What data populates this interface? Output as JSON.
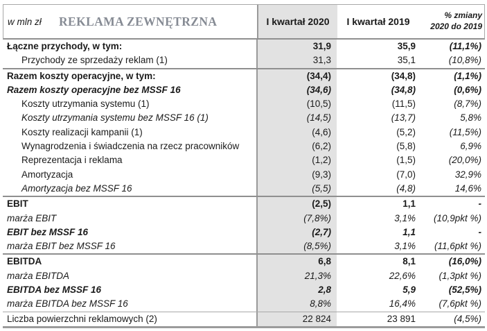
{
  "header": {
    "unit_label": "w mln zł",
    "title": "REKLAMA ZEWNĘTRZNA",
    "columns": {
      "q1_2020": "I kwartał 2020",
      "q1_2019": "I kwartał 2019",
      "change_line1": "% zmiany",
      "change_line2": "2020 do 2019"
    }
  },
  "colors": {
    "highlight_column": "#e2e2e2",
    "title_text": "#868b94",
    "border_dark": "#8f8f8f",
    "border_light": "#a8a8a8",
    "text": "#1a1a1a"
  },
  "table": {
    "rows": [
      {
        "label": "Łączne przychody, w tym:",
        "q1_2020": "31,9",
        "q1_2019": "35,9",
        "change": "(11,1%)",
        "style": "bold",
        "indent": false,
        "separator_above": "none"
      },
      {
        "label": "Przychody ze sprzedaży reklam (1)",
        "q1_2020": "31,3",
        "q1_2019": "35,1",
        "change": "(10,8%)",
        "style": "normal",
        "indent": true,
        "separator_above": "none"
      },
      {
        "label": "Razem koszty operacyjne, w tym:",
        "q1_2020": "(34,4)",
        "q1_2019": "(34,8)",
        "change": "(1,1%)",
        "style": "bold",
        "indent": false,
        "separator_above": "thick"
      },
      {
        "label": "Razem koszty operacyjne bez MSSF 16",
        "q1_2020": "(34,6)",
        "q1_2019": "(34,8)",
        "change": "(0,6%)",
        "style": "bold-italic",
        "indent": false,
        "separator_above": "none"
      },
      {
        "label": "Koszty utrzymania systemu (1)",
        "q1_2020": "(10,5)",
        "q1_2019": "(11,5)",
        "change": "(8,7%)",
        "style": "normal",
        "indent": true,
        "separator_above": "none"
      },
      {
        "label": "Koszty utrzymania systemu bez MSSF 16 (1)",
        "q1_2020": "(14,5)",
        "q1_2019": "(13,7)",
        "change": "5,8%",
        "style": "italic",
        "indent": true,
        "separator_above": "none"
      },
      {
        "label": "Koszty realizacji kampanii (1)",
        "q1_2020": "(4,6)",
        "q1_2019": "(5,2)",
        "change": "(11,5%)",
        "style": "normal",
        "indent": true,
        "separator_above": "none"
      },
      {
        "label": "Wynagrodzenia i świadczenia na rzecz pracowników",
        "q1_2020": "(6,2)",
        "q1_2019": "(5,8)",
        "change": "6,9%",
        "style": "normal",
        "indent": true,
        "separator_above": "none"
      },
      {
        "label": "Reprezentacja i reklama",
        "q1_2020": "(1,2)",
        "q1_2019": "(1,5)",
        "change": "(20,0%)",
        "style": "normal",
        "indent": true,
        "separator_above": "none"
      },
      {
        "label": "Amortyzacja",
        "q1_2020": "(9,3)",
        "q1_2019": "(7,0)",
        "change": "32,9%",
        "style": "normal",
        "indent": true,
        "separator_above": "none"
      },
      {
        "label": "Amortyzacja bez MSSF 16",
        "q1_2020": "(5,5)",
        "q1_2019": "(4,8)",
        "change": "14,6%",
        "style": "italic",
        "indent": true,
        "separator_above": "none"
      },
      {
        "label": "EBIT",
        "q1_2020": "(2,5)",
        "q1_2019": "1,1",
        "change": "-",
        "style": "bold",
        "indent": false,
        "separator_above": "thick"
      },
      {
        "label": "marża EBIT",
        "q1_2020": "(7,8%)",
        "q1_2019": "3,1%",
        "change": "(10,9pkt %)",
        "style": "italic",
        "indent": false,
        "separator_above": "none"
      },
      {
        "label": "EBIT bez MSSF 16",
        "q1_2020": "(2,7)",
        "q1_2019": "1,1",
        "change": "-",
        "style": "bold-italic",
        "indent": false,
        "separator_above": "none"
      },
      {
        "label": "marża EBIT bez MSSF 16",
        "q1_2020": "(8,5%)",
        "q1_2019": "3,1%",
        "change": "(11,6pkt %)",
        "style": "italic",
        "indent": false,
        "separator_above": "none"
      },
      {
        "label": "EBITDA",
        "q1_2020": "6,8",
        "q1_2019": "8,1",
        "change": "(16,0%)",
        "style": "bold",
        "indent": false,
        "separator_above": "thick"
      },
      {
        "label": "marża EBITDA",
        "q1_2020": "21,3%",
        "q1_2019": "22,6%",
        "change": "(1,3pkt %)",
        "style": "italic",
        "indent": false,
        "separator_above": "none"
      },
      {
        "label": "EBITDA bez MSSF 16",
        "q1_2020": "2,8",
        "q1_2019": "5,9",
        "change": "(52,5%)",
        "style": "bold-italic",
        "indent": false,
        "separator_above": "none"
      },
      {
        "label": "marża EBITDA bez MSSF 16",
        "q1_2020": "8,8%",
        "q1_2019": "16,4%",
        "change": "(7,6pkt %)",
        "style": "italic",
        "indent": false,
        "separator_above": "none"
      },
      {
        "label": "Liczba powierzchni reklamowych  (2)",
        "q1_2020": "22 824",
        "q1_2019": "23 891",
        "change": "(4,5%)",
        "style": "normal",
        "indent": false,
        "separator_above": "thin"
      }
    ]
  }
}
